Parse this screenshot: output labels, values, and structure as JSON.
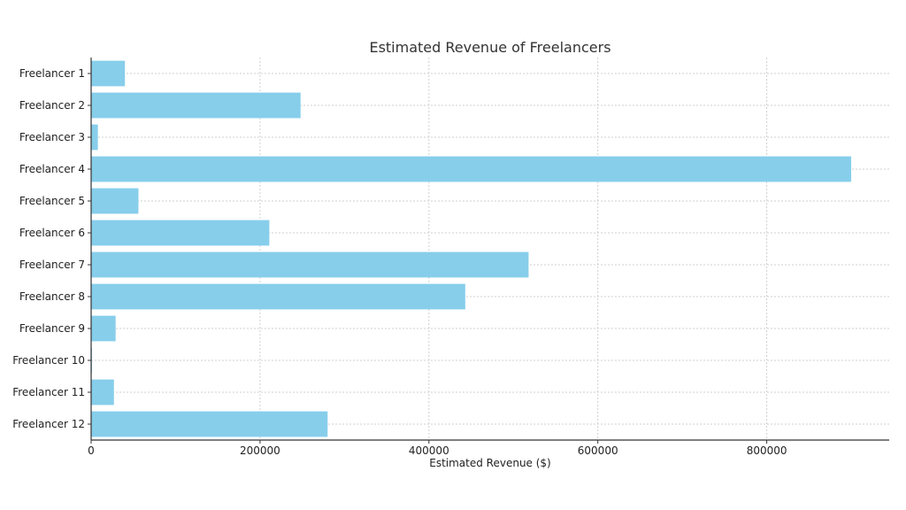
{
  "chart_data": {
    "type": "bar",
    "orientation": "horizontal",
    "title": "Estimated Revenue of Freelancers",
    "xlabel": "Estimated Revenue ($)",
    "ylabel": "",
    "xlim": [
      0,
      945000
    ],
    "xticks": [
      0,
      200000,
      400000,
      600000,
      800000
    ],
    "xtick_labels": [
      "0",
      "200000",
      "400000",
      "600000",
      "800000"
    ],
    "grid": true,
    "bar_color": "#87CEEB",
    "categories": [
      "Freelancer 1",
      "Freelancer 2",
      "Freelancer 3",
      "Freelancer 4",
      "Freelancer 5",
      "Freelancer 6",
      "Freelancer 7",
      "Freelancer 8",
      "Freelancer 9",
      "Freelancer 10",
      "Freelancer 11",
      "Freelancer 12"
    ],
    "values": [
      40000,
      248000,
      8000,
      900000,
      56000,
      211000,
      518000,
      443000,
      29000,
      1000,
      27000,
      280000
    ]
  }
}
